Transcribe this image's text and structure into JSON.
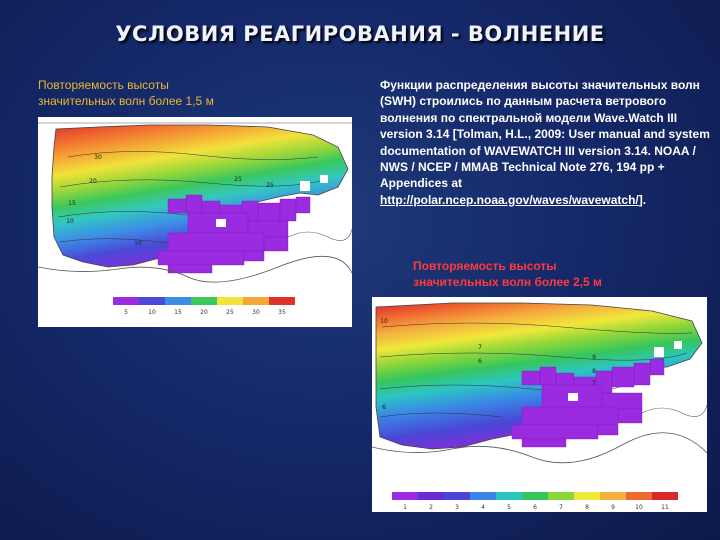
{
  "slide": {
    "title": "УСЛОВИЯ РЕАГИРОВАНИЯ - ВОЛНЕНИЕ"
  },
  "left_map": {
    "caption": "Повторяемость высоты\nзначительных волн более  1,5 м",
    "colorbar_ticks": [
      "5",
      "10",
      "15",
      "20",
      "25",
      "30",
      "35"
    ],
    "contour_labels": [
      "30",
      "20",
      "25",
      "15",
      "10",
      "25",
      "10"
    ]
  },
  "description": {
    "text_before_link": "Функции распределения высоты значительных волн (SWH) строились по данным расчета ветрового волнения по спектральной модели Wave.Watch III version 3.14 [Tolman, H.L., 2009: User manual and system documentation of WAVEWATCH III version 3.14. NOAA / NWS / NCEP / MMAB Technical Note 276, 194 pp + Appendices at ",
    "link": "http://polar.ncep.noaa.gov/waves/wavewatch/",
    "text_after_link": "]."
  },
  "right_map": {
    "caption": "Повторяемость высоты\nзначительных волн более 2,5 м",
    "colorbar_ticks": [
      "1",
      "2",
      "3",
      "4",
      "5",
      "6",
      "7",
      "8",
      "9",
      "10",
      "11"
    ],
    "contour_labels": [
      "10",
      "7",
      "6",
      "9",
      "8",
      "7",
      "6"
    ]
  },
  "colors": {
    "title": "#eef3ff",
    "left_caption": "#e8b930",
    "bottom_caption": "#ff3a3a",
    "background": "#15296a"
  }
}
